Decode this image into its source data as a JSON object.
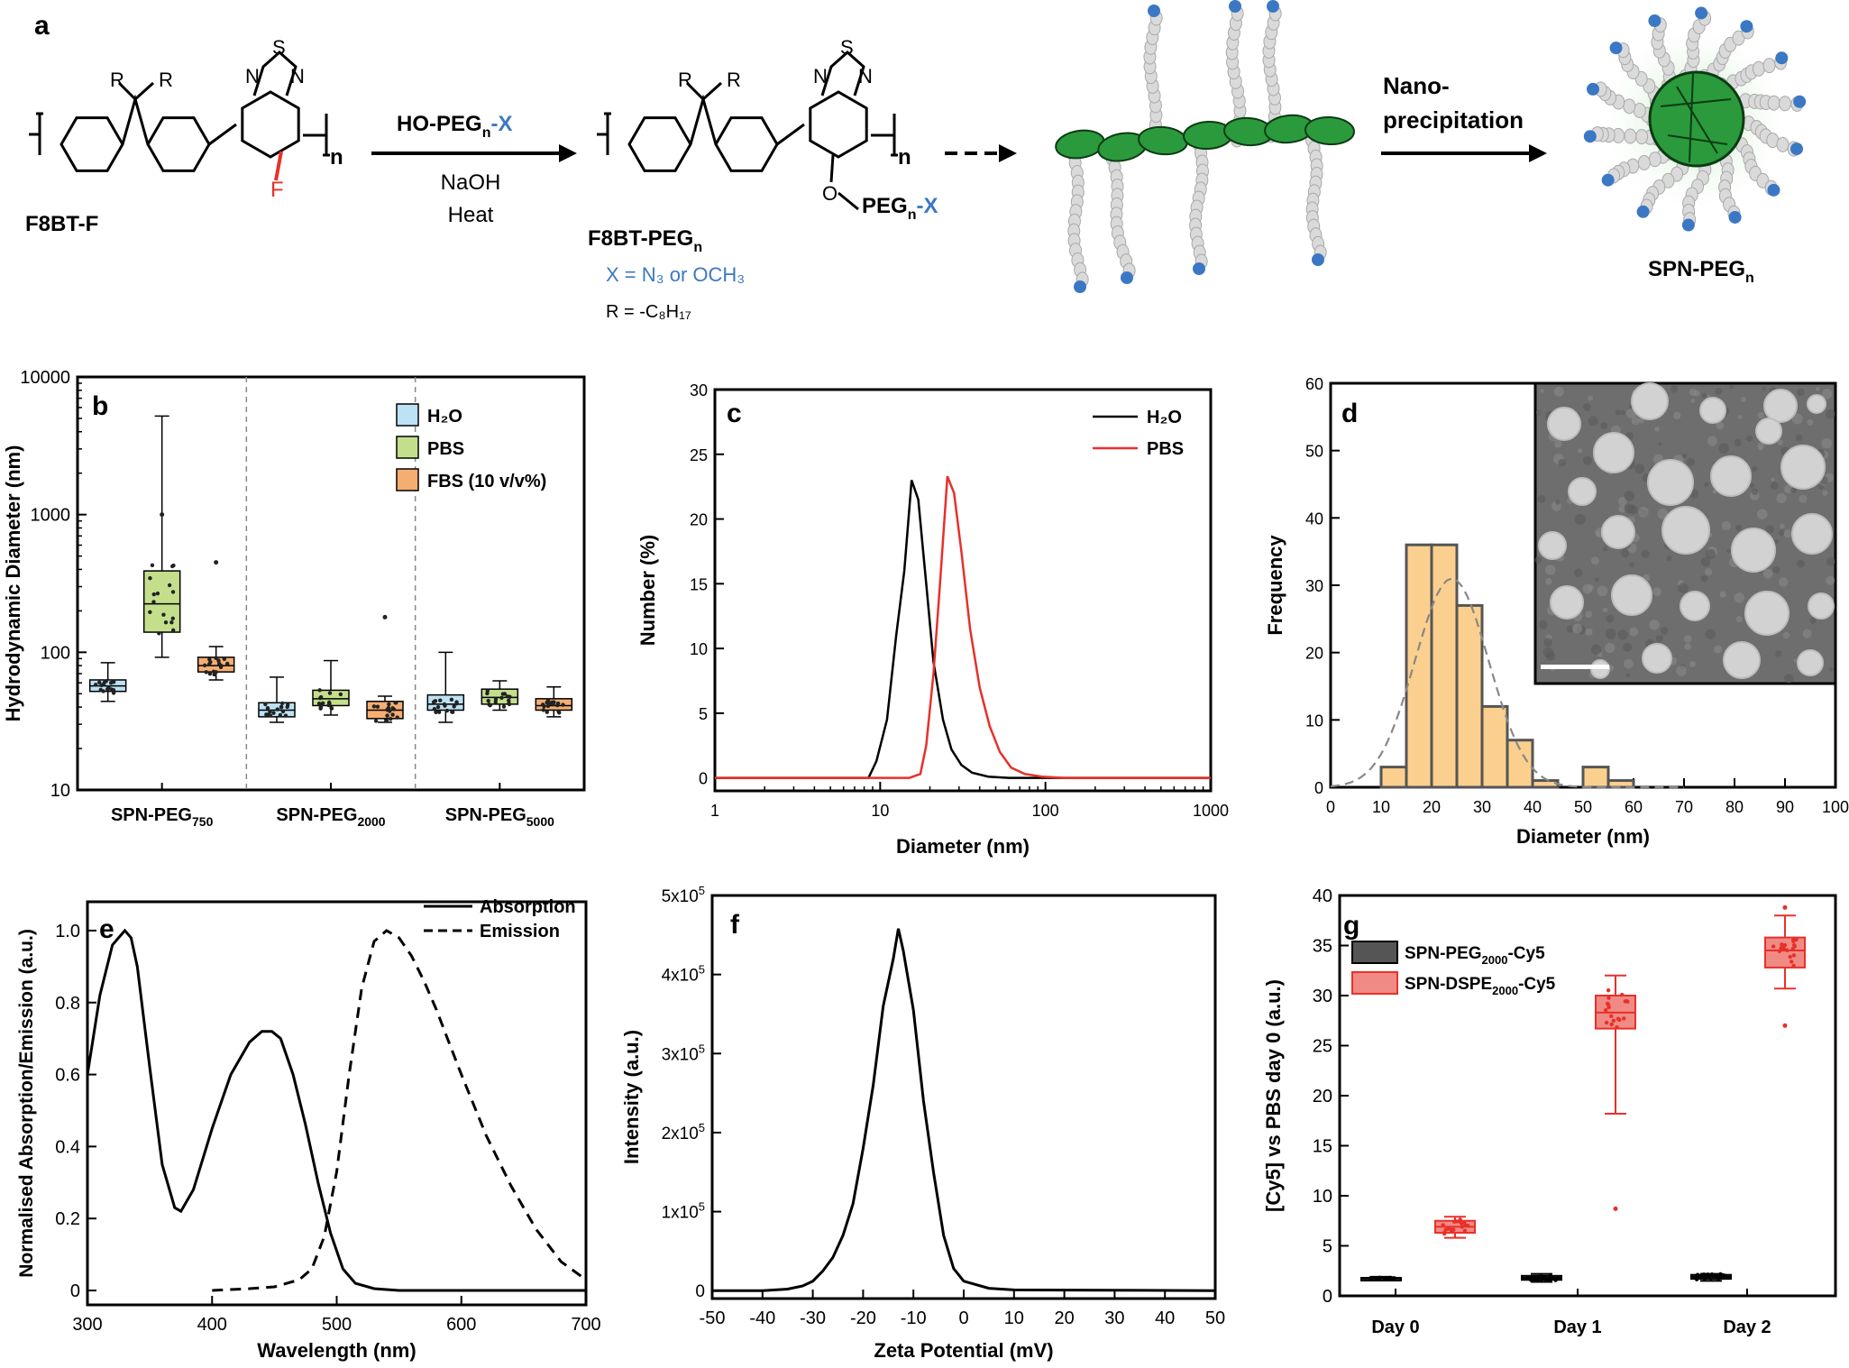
{
  "colors": {
    "h2o_box": "#bde2f4",
    "pbs_box": "#c4df8b",
    "fbs_box": "#f5ae72",
    "hist_fill": "#fbd08e",
    "red": "#e8302a",
    "peg_label": "#3b78c4",
    "polymer_green": "#2a9a3c",
    "chain_grey": "#dadada",
    "chain_end_blue": "#3b78c4"
  },
  "panel_a": {
    "label": "a",
    "f8bt_f": "F8BT-F",
    "reagent_line1_pre": "HO-PEG",
    "reagent_line1_sub": "n",
    "reagent_line1_post": "-X",
    "reagent_line2": "NaOH",
    "reagent_line3": "Heat",
    "product_pre": "F8BT-PEG",
    "product_sub": "n",
    "x_def": "X = N₃ or OCH₃",
    "r_def": "R = -C₈H₁₇",
    "peg_substituent_pre": "PEG",
    "peg_substituent_sub": "n",
    "peg_substituent_post": "-X",
    "o_atom": "O",
    "f_atom": "F",
    "r_label": "R",
    "s_atom": "S",
    "n_atom": "N",
    "repeat_n": "n",
    "nano_line1": "Nano-",
    "nano_line2": "precipitation",
    "spn_pre": "SPN-PEG",
    "spn_sub": "n"
  },
  "chart_data": [
    {
      "panel": "b",
      "type": "box",
      "ylabel": "Hydrodynamic Diameter (nm)",
      "yscale": "log",
      "ylim": [
        10,
        10000
      ],
      "yticks": [
        "10",
        "100",
        "1000",
        "10000"
      ],
      "groups": [
        "SPN-PEG750",
        "SPN-PEG2000",
        "SPN-PEG5000"
      ],
      "group_labels": [
        {
          "pre": "SPN-PEG",
          "sub": "750"
        },
        {
          "pre": "SPN-PEG",
          "sub": "2000"
        },
        {
          "pre": "SPN-PEG",
          "sub": "5000"
        }
      ],
      "legend": [
        "H₂O",
        "PBS",
        "FBS (10 v/v%)"
      ],
      "legend_position": "top-right",
      "boxes": [
        {
          "group": 0,
          "series": 0,
          "min": 44,
          "q1": 52,
          "median": 57,
          "q3": 63,
          "max": 84
        },
        {
          "group": 0,
          "series": 1,
          "min": 92,
          "q1": 140,
          "median": 225,
          "q3": 390,
          "max": 5200
        },
        {
          "group": 0,
          "series": 2,
          "min": 63,
          "q1": 72,
          "median": 80,
          "q3": 92,
          "max": 110
        },
        {
          "group": 1,
          "series": 0,
          "min": 31,
          "q1": 34,
          "median": 38,
          "q3": 43,
          "max": 66
        },
        {
          "group": 1,
          "series": 1,
          "min": 35,
          "q1": 41,
          "median": 46,
          "q3": 53,
          "max": 87
        },
        {
          "group": 1,
          "series": 2,
          "min": 31,
          "q1": 33,
          "median": 38,
          "q3": 44,
          "max": 48
        },
        {
          "group": 2,
          "series": 0,
          "min": 31,
          "q1": 38,
          "median": 42,
          "q3": 49,
          "max": 100
        },
        {
          "group": 2,
          "series": 1,
          "min": 38,
          "q1": 42,
          "median": 47,
          "q3": 54,
          "max": 62
        },
        {
          "group": 2,
          "series": 2,
          "min": 34,
          "q1": 38,
          "median": 41,
          "q3": 46,
          "max": 56
        }
      ],
      "outliers": [
        {
          "group": 0,
          "series": 1,
          "value": 1000
        },
        {
          "group": 0,
          "series": 2,
          "value": 450
        },
        {
          "group": 1,
          "series": 2,
          "value": 180
        }
      ]
    },
    {
      "panel": "c",
      "type": "line",
      "xlabel": "Diameter (nm)",
      "ylabel": "Number (%)",
      "xscale": "log",
      "xlim": [
        1,
        1000
      ],
      "ylim": [
        -1,
        30
      ],
      "xticks": [
        "1",
        "10",
        "100",
        "1000"
      ],
      "yticks": [
        "0",
        "5",
        "10",
        "15",
        "20",
        "25",
        "30"
      ],
      "legend_position": "top-right",
      "series": [
        {
          "name": "H₂O",
          "x": [
            1,
            8.5,
            9.5,
            11,
            12.5,
            14,
            15.5,
            17,
            19,
            21,
            24,
            27,
            31,
            36,
            45,
            60,
            100,
            1000
          ],
          "y": [
            0,
            0,
            1.3,
            4.5,
            11,
            16,
            23,
            21.5,
            15,
            9,
            4.5,
            2.2,
            1,
            0.4,
            0.1,
            0,
            0,
            0
          ]
        },
        {
          "name": "PBS",
          "x": [
            1,
            15,
            17.5,
            19,
            21,
            23,
            25.5,
            28,
            31,
            35,
            40,
            46,
            53,
            62,
            75,
            95,
            130,
            1000
          ],
          "y": [
            0,
            0,
            0.3,
            2.5,
            8,
            15,
            23.3,
            22,
            17.5,
            11.5,
            7,
            4,
            2,
            0.8,
            0.3,
            0.1,
            0,
            0
          ]
        }
      ]
    },
    {
      "panel": "d",
      "type": "bar",
      "xlabel": "Diameter (nm)",
      "ylabel": "Frequency",
      "xlim": [
        0,
        100
      ],
      "ylim": [
        0,
        60
      ],
      "xticks": [
        "0",
        "10",
        "20",
        "30",
        "40",
        "50",
        "60",
        "70",
        "80",
        "90",
        "100"
      ],
      "yticks": [
        "0",
        "10",
        "20",
        "30",
        "40",
        "50",
        "60"
      ],
      "bin_width": 5,
      "bins": [
        {
          "start": 10,
          "count": 3
        },
        {
          "start": 15,
          "count": 36
        },
        {
          "start": 20,
          "count": 36
        },
        {
          "start": 25,
          "count": 27
        },
        {
          "start": 30,
          "count": 12
        },
        {
          "start": 35,
          "count": 7
        },
        {
          "start": 40,
          "count": 1
        },
        {
          "start": 45,
          "count": 0
        },
        {
          "start": 50,
          "count": 3
        },
        {
          "start": 55,
          "count": 1
        }
      ],
      "fit": {
        "type": "gaussian",
        "mean": 24,
        "sd": 7.3,
        "peak": 31
      }
    },
    {
      "panel": "e",
      "type": "line",
      "xlabel": "Wavelength (nm)",
      "ylabel": "Normalised Absorption/Emission (a.u.)",
      "xlim": [
        300,
        700
      ],
      "ylim": [
        -0.04,
        1.08
      ],
      "xticks": [
        "300",
        "400",
        "500",
        "600",
        "700"
      ],
      "yticks": [
        "0",
        "0.2",
        "0.4",
        "0.6",
        "0.8",
        "1.0"
      ],
      "legend_position": "top-right",
      "series": [
        {
          "name": "Absorption",
          "x": [
            300,
            310,
            320,
            330,
            335,
            340,
            350,
            360,
            370,
            375,
            385,
            400,
            415,
            430,
            440,
            448,
            455,
            465,
            475,
            485,
            495,
            505,
            515,
            530,
            550,
            600,
            700
          ],
          "y": [
            0.6,
            0.82,
            0.96,
            1.0,
            0.98,
            0.9,
            0.62,
            0.35,
            0.23,
            0.22,
            0.28,
            0.45,
            0.6,
            0.69,
            0.72,
            0.72,
            0.7,
            0.6,
            0.46,
            0.3,
            0.16,
            0.06,
            0.02,
            0.005,
            0,
            0,
            0
          ]
        },
        {
          "name": "Emission",
          "x": [
            400,
            430,
            450,
            460,
            470,
            480,
            490,
            500,
            510,
            520,
            530,
            540,
            550,
            560,
            570,
            580,
            590,
            600,
            620,
            640,
            660,
            680,
            700
          ],
          "y": [
            0,
            0.005,
            0.01,
            0.02,
            0.03,
            0.06,
            0.15,
            0.33,
            0.6,
            0.84,
            0.97,
            1.0,
            0.98,
            0.93,
            0.86,
            0.78,
            0.69,
            0.6,
            0.43,
            0.29,
            0.17,
            0.08,
            0.03
          ]
        }
      ]
    },
    {
      "panel": "f",
      "type": "line",
      "xlabel": "Zeta Potential (mV)",
      "ylabel": "Intensity (a.u.)",
      "xlim": [
        -50,
        50
      ],
      "ylim": [
        -10000,
        500000
      ],
      "xticks": [
        "-50",
        "-40",
        "-30",
        "-20",
        "-10",
        "0",
        "10",
        "20",
        "30",
        "40",
        "50"
      ],
      "yticks": [
        {
          "mant": "0",
          "exp": ""
        },
        {
          "mant": "1x10",
          "exp": "5"
        },
        {
          "mant": "2x10",
          "exp": "5"
        },
        {
          "mant": "3x10",
          "exp": "5"
        },
        {
          "mant": "4x10",
          "exp": "5"
        },
        {
          "mant": "5x10",
          "exp": "5"
        }
      ],
      "series": [
        {
          "name": "",
          "x": [
            -50,
            -40,
            -35,
            -32,
            -30,
            -28,
            -26,
            -24,
            -22,
            -20,
            -18,
            -16,
            -14,
            -13,
            -12,
            -10,
            -8,
            -6,
            -4,
            -2,
            0,
            5,
            10,
            50
          ],
          "y": [
            0,
            0,
            2000,
            6000,
            12000,
            25000,
            42000,
            70000,
            110000,
            180000,
            260000,
            360000,
            420000,
            458000,
            430000,
            355000,
            240000,
            150000,
            70000,
            28000,
            12000,
            3000,
            1000,
            0
          ]
        }
      ]
    },
    {
      "panel": "g",
      "type": "box",
      "ylabel": "[Cy5] vs PBS day 0 (a.u.)",
      "ylim": [
        0,
        40
      ],
      "yticks": [
        "0",
        "5",
        "10",
        "15",
        "20",
        "25",
        "30",
        "35",
        "40"
      ],
      "categories": [
        "Day 0",
        "Day 1",
        "Day 2"
      ],
      "legend": [
        {
          "pre": "SPN-PEG",
          "sub": "2000",
          "post": "-Cy5"
        },
        {
          "pre": "SPN-DSPE",
          "sub": "2000",
          "post": "-Cy5"
        }
      ],
      "legend_position": "top-left",
      "boxes": [
        {
          "group": 0,
          "series": 0,
          "min": 1.6,
          "q1": 1.7,
          "median": 1.75,
          "q3": 1.8,
          "max": 1.9
        },
        {
          "group": 0,
          "series": 1,
          "min": 5.8,
          "q1": 6.3,
          "median": 6.9,
          "q3": 7.5,
          "max": 7.9
        },
        {
          "group": 1,
          "series": 0,
          "min": 1.4,
          "q1": 1.6,
          "median": 1.8,
          "q3": 2.0,
          "max": 2.2
        },
        {
          "group": 1,
          "series": 1,
          "min": 18.2,
          "q1": 26.7,
          "median": 28.3,
          "q3": 30.0,
          "max": 32.0
        },
        {
          "group": 2,
          "series": 0,
          "min": 1.5,
          "q1": 1.7,
          "median": 1.9,
          "q3": 2.1,
          "max": 2.2
        },
        {
          "group": 2,
          "series": 1,
          "min": 30.7,
          "q1": 32.8,
          "median": 34.5,
          "q3": 35.8,
          "max": 38.0
        }
      ],
      "outliers": [
        {
          "group": 1,
          "series": 1,
          "value": 8.7
        },
        {
          "group": 2,
          "series": 1,
          "value": 27.0
        },
        {
          "group": 2,
          "series": 1,
          "value": 38.8
        }
      ]
    }
  ]
}
